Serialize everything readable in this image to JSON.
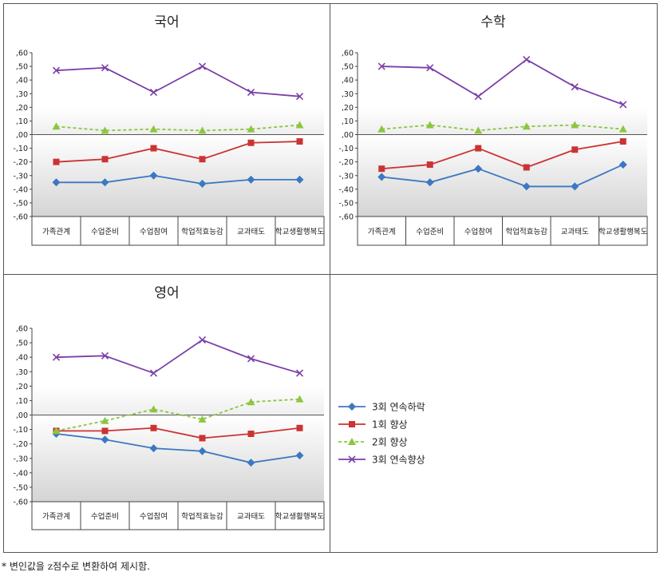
{
  "chart_data": [
    {
      "type": "line",
      "title": "국어",
      "categories": [
        "가족관계",
        "수업준비",
        "수업참여",
        "학업적효능감",
        "교과태도",
        "학교생활행복도"
      ],
      "ylim": [
        -0.6,
        0.6
      ],
      "yticks": [
        ",60",
        ",50",
        ",40",
        ",30",
        ",20",
        ",10",
        ",00",
        "-,10",
        "-,20",
        "-,30",
        "-,40",
        "-,50",
        "-,60"
      ],
      "series": [
        {
          "name": "3회 연속하락",
          "values": [
            -0.35,
            -0.35,
            -0.3,
            -0.36,
            -0.33,
            -0.33
          ]
        },
        {
          "name": "1회 향상",
          "values": [
            -0.2,
            -0.18,
            -0.1,
            -0.18,
            -0.06,
            -0.05
          ]
        },
        {
          "name": "2회 향상",
          "values": [
            0.06,
            0.03,
            0.04,
            0.03,
            0.04,
            0.07
          ]
        },
        {
          "name": "3회 연속향상",
          "values": [
            0.47,
            0.49,
            0.31,
            0.5,
            0.31,
            0.28
          ]
        }
      ]
    },
    {
      "type": "line",
      "title": "수학",
      "categories": [
        "가족관계",
        "수업준비",
        "수업참여",
        "학업적효능감",
        "교과태도",
        "학교생활행복도"
      ],
      "ylim": [
        -0.6,
        0.6
      ],
      "yticks": [
        ",60",
        ",50",
        ",40",
        ",30",
        ",20",
        ",10",
        ",00",
        "-,10",
        "-,20",
        "-,30",
        "-,40",
        "-,50",
        "-,60"
      ],
      "series": [
        {
          "name": "3회 연속하락",
          "values": [
            -0.31,
            -0.35,
            -0.25,
            -0.38,
            -0.38,
            -0.22
          ]
        },
        {
          "name": "1회 향상",
          "values": [
            -0.25,
            -0.22,
            -0.1,
            -0.24,
            -0.11,
            -0.05
          ]
        },
        {
          "name": "2회 향상",
          "values": [
            0.04,
            0.07,
            0.03,
            0.06,
            0.07,
            0.04
          ]
        },
        {
          "name": "3회 연속향상",
          "values": [
            0.5,
            0.49,
            0.28,
            0.55,
            0.35,
            0.22
          ]
        }
      ]
    },
    {
      "type": "line",
      "title": "영어",
      "categories": [
        "가족관계",
        "수업준비",
        "수업참여",
        "학업적효능감",
        "교과태도",
        "학교생활행복도"
      ],
      "ylim": [
        -0.6,
        0.6
      ],
      "yticks": [
        ",60",
        ",50",
        ",40",
        ",30",
        ",20",
        ",10",
        ",00",
        "-,10",
        "-,20",
        "-,30",
        "-,40",
        "-,50",
        "-,60"
      ],
      "series": [
        {
          "name": "3회 연속하락",
          "values": [
            -0.13,
            -0.17,
            -0.23,
            -0.25,
            -0.33,
            -0.28
          ]
        },
        {
          "name": "1회 향상",
          "values": [
            -0.11,
            -0.11,
            -0.09,
            -0.16,
            -0.13,
            -0.09
          ]
        },
        {
          "name": "2회 향상",
          "values": [
            -0.11,
            -0.04,
            0.04,
            -0.03,
            0.09,
            0.11
          ]
        },
        {
          "name": "3회 연속향상",
          "values": [
            0.4,
            0.41,
            0.29,
            0.52,
            0.39,
            0.29
          ]
        }
      ]
    }
  ],
  "legend": {
    "items": [
      {
        "label": "3회 연속하락",
        "color": "#3b78c2",
        "marker": "diamond",
        "dash": "solid"
      },
      {
        "label": "1회 향상",
        "color": "#cc3333",
        "marker": "square",
        "dash": "solid"
      },
      {
        "label": "2회 향상",
        "color": "#8cc63f",
        "marker": "triangle",
        "dash": "dashed"
      },
      {
        "label": "3회 연속향상",
        "color": "#7a3fa8",
        "marker": "x",
        "dash": "solid"
      }
    ]
  },
  "footnote": "* 변인값을 z점수로 변환하여 제시함."
}
